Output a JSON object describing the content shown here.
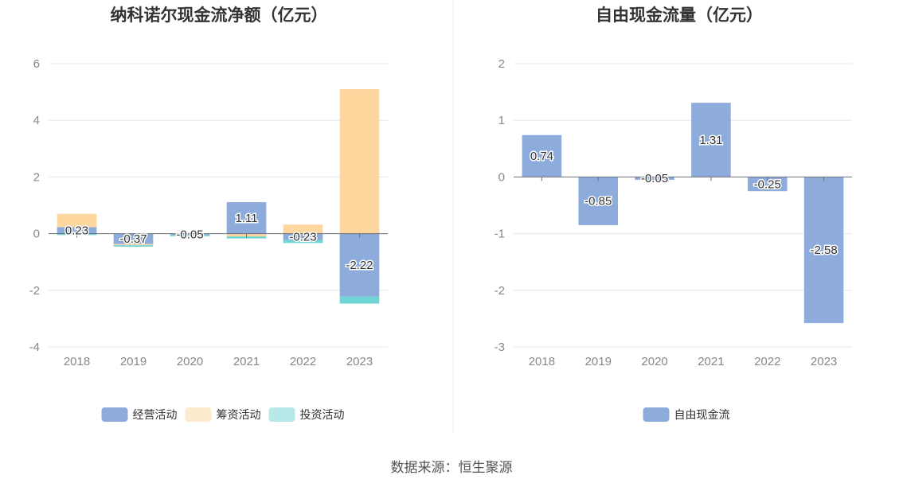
{
  "source_label": "数据来源：恒生聚源",
  "colors": {
    "operating": "#8eacdb",
    "financing": "#fed79f",
    "investing": "#6fd4d4",
    "free": "#8eacdb"
  },
  "chart_data": [
    {
      "type": "bar",
      "stacked": true,
      "title": "纳科诺尔现金流净额（亿元）",
      "categories": [
        "2018",
        "2019",
        "2020",
        "2021",
        "2022",
        "2023"
      ],
      "ylim": [
        -4,
        6
      ],
      "yticks": [
        6,
        4,
        2,
        0,
        -2,
        -4
      ],
      "grid": true,
      "legend": "bottom",
      "series": [
        {
          "name": "经营活动",
          "key": "operating",
          "values": [
            0.23,
            -0.37,
            -0.05,
            1.11,
            -0.23,
            -2.22
          ]
        },
        {
          "name": "筹资活动",
          "key": "financing",
          "values": [
            0.47,
            -0.04,
            0.0,
            -0.1,
            0.32,
            5.1
          ]
        },
        {
          "name": "投资活动",
          "key": "investing",
          "values": [
            -0.05,
            -0.05,
            -0.02,
            -0.07,
            -0.1,
            -0.25
          ]
        }
      ],
      "data_labels": [
        "0.23",
        "-0.37",
        "-0.05",
        "1.11",
        "-0.23",
        "-2.22"
      ]
    },
    {
      "type": "bar",
      "title": "自由现金流量（亿元）",
      "categories": [
        "2018",
        "2019",
        "2020",
        "2021",
        "2022",
        "2023"
      ],
      "ylim": [
        -3,
        2
      ],
      "yticks": [
        2,
        1,
        0,
        -1,
        -2,
        -3
      ],
      "grid": true,
      "legend": "bottom",
      "series": [
        {
          "name": "自由现金流",
          "key": "free",
          "values": [
            0.74,
            -0.85,
            -0.05,
            1.31,
            -0.25,
            -2.58
          ]
        }
      ],
      "data_labels": [
        "0.74",
        "-0.85",
        "-0.05",
        "1.31",
        "-0.25",
        "-2.58"
      ]
    }
  ]
}
